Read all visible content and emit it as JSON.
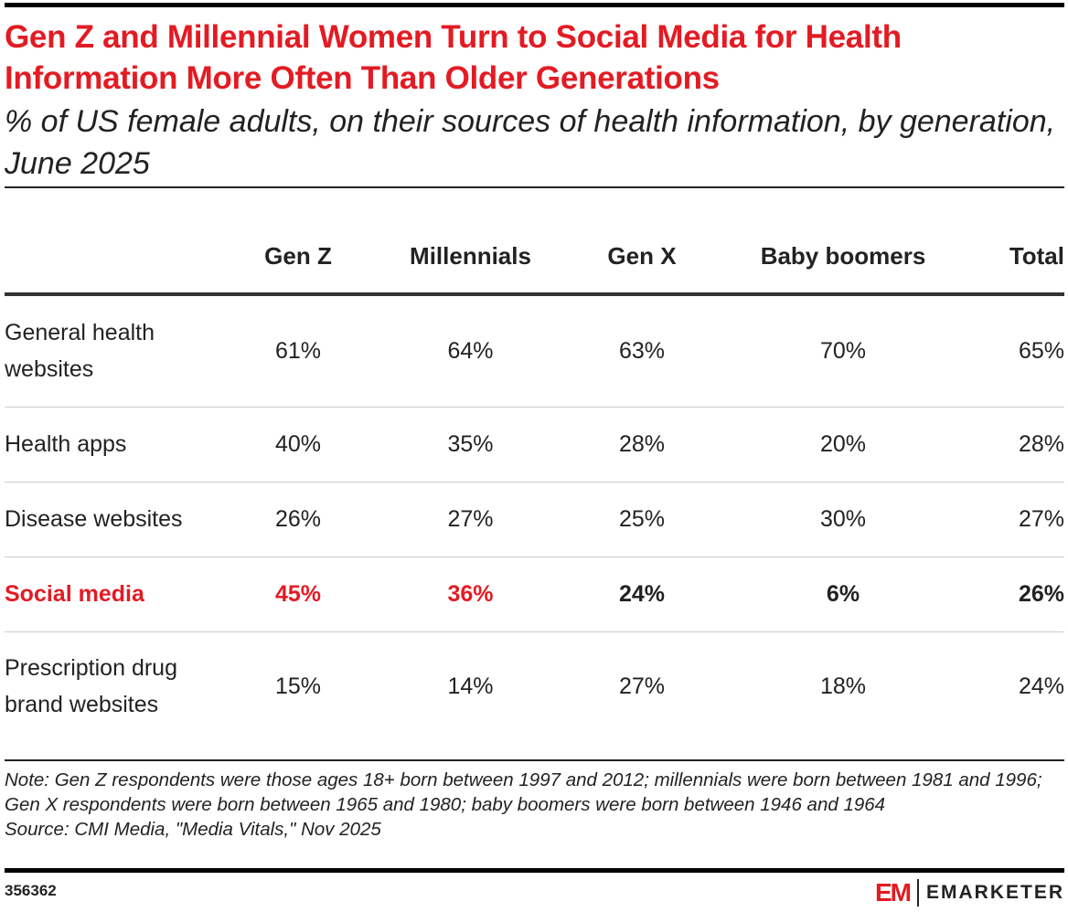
{
  "title": "Gen Z and Millennial Women Turn to Social Media for Health Information More Often Than Older Generations",
  "subtitle": "% of US female adults, on their sources of health information, by generation, June 2025",
  "chart_data": {
    "type": "table",
    "columns": [
      "",
      "Gen Z",
      "Millennials",
      "Gen X",
      "Baby boomers",
      "Total"
    ],
    "rows": [
      {
        "label": "General health websites",
        "values": [
          "61%",
          "64%",
          "63%",
          "70%",
          "65%"
        ]
      },
      {
        "label": "Health apps",
        "values": [
          "40%",
          "35%",
          "28%",
          "20%",
          "28%"
        ]
      },
      {
        "label": "Disease websites",
        "values": [
          "26%",
          "27%",
          "25%",
          "30%",
          "27%"
        ]
      },
      {
        "label": "Social media",
        "values": [
          "45%",
          "36%",
          "24%",
          "6%",
          "26%"
        ],
        "highlight": true
      },
      {
        "label": "Prescription drug brand websites",
        "values": [
          "15%",
          "14%",
          "27%",
          "18%",
          "24%"
        ]
      }
    ],
    "highlight_color": "#e31b23"
  },
  "note": "Note: Gen Z respondents were those ages 18+ born between 1997 and 2012; millennials were born between 1981 and 1996; Gen X respondents were born between 1965 and 1980; baby boomers were born between 1946 and 1964",
  "source": "Source: CMI Media, \"Media Vitals,\" Nov 2025",
  "chart_id": "356362",
  "logo": {
    "mark": "EM",
    "brand": "EMARKETER"
  }
}
